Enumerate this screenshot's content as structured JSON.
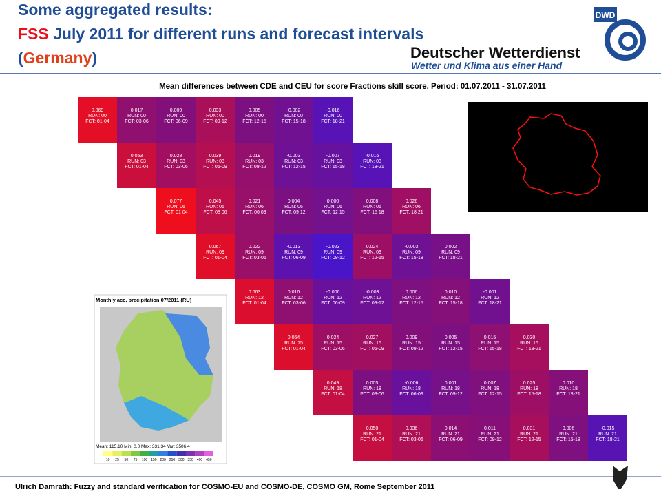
{
  "header": {
    "title_line1": "Some aggregated results:",
    "title_line2": [
      "FSS",
      " July 2011 for different runs and forecast intervals"
    ],
    "title_line3": [
      "(",
      "Germany",
      ")"
    ],
    "logo_abbr": "DWD",
    "logo_name": "Deutscher Wetterdienst",
    "logo_tagline": "Wetter und Klima aus einer Hand"
  },
  "heatmap": {
    "title": "Mean differences between CDE and CEU for score Fractions skill score, Period: 01.07.2011 - 31.07.2011",
    "rows": [
      {
        "cells": [
          {
            "value": "0.069",
            "run": "RUN: 00",
            "fct": "FCT: 01-04"
          },
          {
            "value": "0.017",
            "run": "RUN: 00",
            "fct": "FCT: 03-06"
          },
          {
            "value": "0.009",
            "run": "RUN: 00",
            "fct": "FCT: 06-09"
          },
          {
            "value": "0.033",
            "run": "RUN: 00",
            "fct": "FCT: 09-12"
          },
          {
            "value": "0.005",
            "run": "RUN: 00",
            "fct": "FCT: 12-15"
          },
          {
            "value": "-0.002",
            "run": "RUN: 00",
            "fct": "FCT: 15-18"
          },
          {
            "value": "-0.016",
            "run": "RUN: 00",
            "fct": "FCT: 18-21"
          }
        ]
      },
      {
        "cells": [
          {
            "value": "0.053",
            "run": "RUN: 03",
            "fct": "FCT: 01-04"
          },
          {
            "value": "0.028",
            "run": "RUN: 03",
            "fct": "FCT: 03-06"
          },
          {
            "value": "0.039",
            "run": "RUN: 03",
            "fct": "FCT: 06-09"
          },
          {
            "value": "0.019",
            "run": "RUN: 03",
            "fct": "FCT: 09-12"
          },
          {
            "value": "-0.003",
            "run": "RUN: 03",
            "fct": "FCT: 12-15"
          },
          {
            "value": "-0.007",
            "run": "RUN: 03",
            "fct": "FCT: 15-18"
          },
          {
            "value": "-0.016",
            "run": "RUN: 03",
            "fct": "FCT: 18-21"
          }
        ]
      },
      {
        "cells": [
          {
            "value": "0.077",
            "run": "RUN: 06",
            "fct": "FCT: 01 04"
          },
          {
            "value": "0.045",
            "run": "RUN: 06",
            "fct": "FCT: 03 06"
          },
          {
            "value": "0.021",
            "run": "RUN: 06",
            "fct": "FCT: 06 09"
          },
          {
            "value": "0.004",
            "run": "RUN: 06",
            "fct": "FCT: 09 12"
          },
          {
            "value": "0.000",
            "run": "RUN: 06",
            "fct": "FCT: 12 15"
          },
          {
            "value": "0.008",
            "run": "RUN: 06",
            "fct": "FCT: 15 18"
          },
          {
            "value": "0.026",
            "run": "RUN: 06",
            "fct": "FCT: 18 21"
          }
        ]
      },
      {
        "cells": [
          {
            "value": "0.067",
            "run": "RUN: 09",
            "fct": "FCT: 01-04"
          },
          {
            "value": "0.022",
            "run": "RUN: 09",
            "fct": "FCT: 03-06"
          },
          {
            "value": "-0.013",
            "run": "RUN: 09",
            "fct": "FCT: 06-09"
          },
          {
            "value": "-0.023",
            "run": "RUN: 09",
            "fct": "FCT: 09-12"
          },
          {
            "value": "0.024",
            "run": "RUN: 09",
            "fct": "FCT: 12-15"
          },
          {
            "value": "-0.003",
            "run": "RUN: 09",
            "fct": "FCT: 15-18"
          },
          {
            "value": "0.002",
            "run": "RUN: 09",
            "fct": "FCT: 18-21"
          }
        ]
      },
      {
        "cells": [
          {
            "value": "0.063",
            "run": "RUN: 12",
            "fct": "FCT: 01-04"
          },
          {
            "value": "0.016",
            "run": "RUN: 12",
            "fct": "FCT: 03-06"
          },
          {
            "value": "-0.006",
            "run": "RUN: 12",
            "fct": "FCT: 06-09"
          },
          {
            "value": "-0.003",
            "run": "RUN: 12",
            "fct": "FCT: 09-12"
          },
          {
            "value": "0.006",
            "run": "RUN: 12",
            "fct": "FCT: 12-15"
          },
          {
            "value": "0.010",
            "run": "RUN: 12",
            "fct": "FCT: 15-18"
          },
          {
            "value": "-0.001",
            "run": "RUN: 12",
            "fct": "FCT: 18-21"
          }
        ]
      },
      {
        "cells": [
          {
            "value": "0.064",
            "run": "RUN: 15",
            "fct": "FCT: 01-04"
          },
          {
            "value": "0.024",
            "run": "RUN: 15",
            "fct": "FCT: 03-06"
          },
          {
            "value": "0.027",
            "run": "RUN: 15",
            "fct": "FCT: 06-09"
          },
          {
            "value": "0.009",
            "run": "RUN: 15",
            "fct": "FCT: 09-12"
          },
          {
            "value": "0.005",
            "run": "RUN: 15",
            "fct": "FCT: 12-15"
          },
          {
            "value": "0.015",
            "run": "RUN: 15",
            "fct": "FCT: 15-18"
          },
          {
            "value": "0.030",
            "run": "RUN: 15",
            "fct": "FCT: 18-21"
          }
        ]
      },
      {
        "cells": [
          {
            "value": "0.049",
            "run": "RUN: 18",
            "fct": "FCT: 01-04"
          },
          {
            "value": "0.005",
            "run": "RUN: 18",
            "fct": "FCT: 03-06"
          },
          {
            "value": "-0.006",
            "run": "RUN: 18",
            "fct": "FCT: 06-09"
          },
          {
            "value": "0.001",
            "run": "RUN: 18",
            "fct": "FCT: 09-12"
          },
          {
            "value": "0.007",
            "run": "RUN: 18",
            "fct": "FCT: 12-15"
          },
          {
            "value": "0.025",
            "run": "RUN: 18",
            "fct": "FCT: 15-18"
          },
          {
            "value": "0.010",
            "run": "RUN: 18",
            "fct": "FCT: 18-21"
          }
        ]
      },
      {
        "cells": [
          {
            "value": "0.050",
            "run": "RUN: 21",
            "fct": "FCT: 01-04"
          },
          {
            "value": "0.036",
            "run": "RUN: 21",
            "fct": "FCT: 03-06"
          },
          {
            "value": "0.014",
            "run": "RUN: 21",
            "fct": "FCT: 06-09"
          },
          {
            "value": "0.011",
            "run": "RUN: 21",
            "fct": "FCT: 09-12"
          },
          {
            "value": "0.031",
            "run": "RUN: 21",
            "fct": "FCT: 12-15"
          },
          {
            "value": "0.006",
            "run": "RUN: 21",
            "fct": "FCT: 15-18"
          },
          {
            "value": "-0.015",
            "run": "RUN: 21",
            "fct": "FCT: 18-21"
          }
        ]
      }
    ]
  },
  "precip_map": {
    "title": "Monthly acc. precipitation 07/2011 (RU)",
    "stats": "Mean: 115.10  Min: 0.0  Max: 331.34  Var: 3506.4",
    "colorbar_labels": [
      "10",
      "25",
      "50",
      "75",
      "100",
      "150",
      "200",
      "250",
      "300",
      "350",
      "400",
      "450"
    ]
  },
  "footer": {
    "text": "Ulrich Damrath: Fuzzy and standard verification for COSMO-EU and COSMO-DE, COSMO GM, Rome September 2011"
  }
}
